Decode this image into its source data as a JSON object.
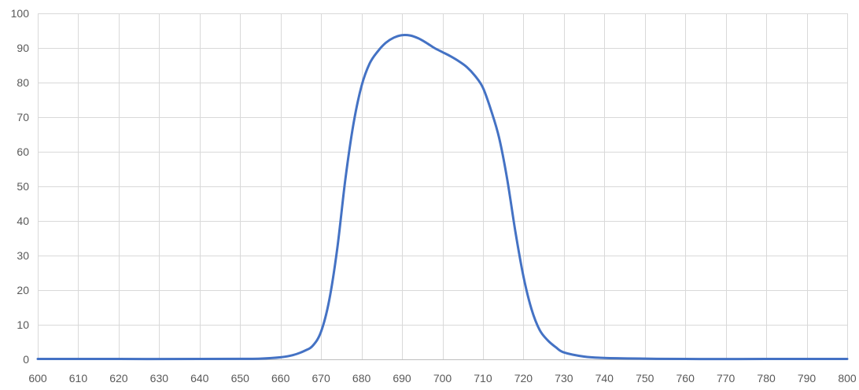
{
  "chart_data": {
    "type": "line",
    "title": "",
    "xlabel": "",
    "ylabel": "",
    "xlim": [
      600,
      800
    ],
    "ylim": [
      0,
      100
    ],
    "x_ticks": [
      600,
      610,
      620,
      630,
      640,
      650,
      660,
      670,
      680,
      690,
      700,
      710,
      720,
      730,
      740,
      750,
      760,
      770,
      780,
      790,
      800
    ],
    "y_ticks": [
      0,
      10,
      20,
      30,
      40,
      50,
      60,
      70,
      80,
      90,
      100
    ],
    "grid": true,
    "legend": "none",
    "series": [
      {
        "color": "#4472c4",
        "points": [
          [
            600,
            0.1
          ],
          [
            620,
            0.1
          ],
          [
            640,
            0.1
          ],
          [
            650,
            0.15
          ],
          [
            655,
            0.2
          ],
          [
            660,
            0.6
          ],
          [
            663,
            1.2
          ],
          [
            666,
            2.5
          ],
          [
            668,
            4.0
          ],
          [
            670,
            8.0
          ],
          [
            672,
            17.0
          ],
          [
            674,
            32.0
          ],
          [
            676,
            52.0
          ],
          [
            678,
            68.0
          ],
          [
            680,
            79.0
          ],
          [
            682,
            85.5
          ],
          [
            684,
            89.0
          ],
          [
            686,
            91.5
          ],
          [
            688,
            93.0
          ],
          [
            690,
            93.7
          ],
          [
            692,
            93.6
          ],
          [
            694,
            92.8
          ],
          [
            696,
            91.5
          ],
          [
            698,
            90.0
          ],
          [
            700,
            88.8
          ],
          [
            702,
            87.6
          ],
          [
            704,
            86.2
          ],
          [
            706,
            84.5
          ],
          [
            708,
            82.0
          ],
          [
            710,
            78.5
          ],
          [
            712,
            72.0
          ],
          [
            714,
            64.0
          ],
          [
            716,
            52.0
          ],
          [
            718,
            37.0
          ],
          [
            720,
            24.0
          ],
          [
            722,
            14.5
          ],
          [
            724,
            8.5
          ],
          [
            726,
            5.5
          ],
          [
            728,
            3.5
          ],
          [
            730,
            2.0
          ],
          [
            735,
            0.8
          ],
          [
            740,
            0.4
          ],
          [
            750,
            0.2
          ],
          [
            760,
            0.1
          ],
          [
            780,
            0.1
          ],
          [
            800,
            0.1
          ]
        ]
      }
    ]
  }
}
